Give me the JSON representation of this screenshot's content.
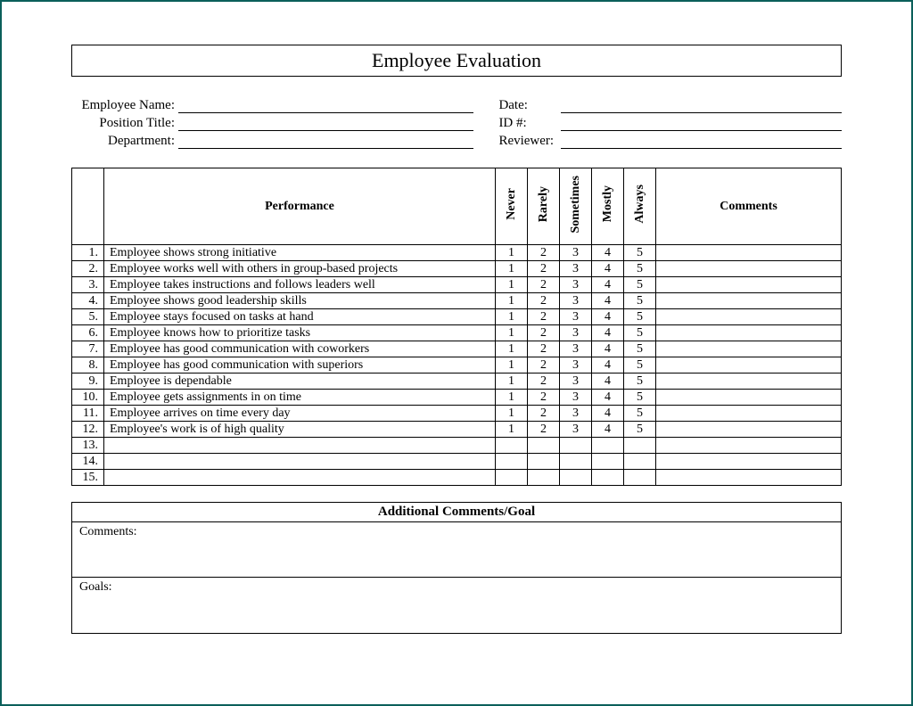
{
  "title": "Employee Evaluation",
  "header": {
    "left": [
      {
        "label": "Employee Name:"
      },
      {
        "label": "Position Title:"
      },
      {
        "label": "Department:"
      }
    ],
    "right": [
      {
        "label": "Date:"
      },
      {
        "label": "ID #:"
      },
      {
        "label": "Reviewer:"
      }
    ]
  },
  "table": {
    "col_performance": "Performance",
    "col_comments": "Comments",
    "rating_labels": [
      "Never",
      "Rarely",
      "Sometimes",
      "Mostly",
      "Always"
    ],
    "rating_values": [
      "1",
      "2",
      "3",
      "4",
      "5"
    ],
    "rows": [
      {
        "num": "1.",
        "text": "Employee shows strong initiative",
        "rated": true
      },
      {
        "num": "2.",
        "text": "Employee works well with others in group-based projects",
        "rated": true
      },
      {
        "num": "3.",
        "text": "Employee takes instructions and follows  leaders well",
        "rated": true
      },
      {
        "num": "4.",
        "text": "Employee shows good leadership skills",
        "rated": true
      },
      {
        "num": "5.",
        "text": "Employee stays focused on tasks at hand",
        "rated": true
      },
      {
        "num": "6.",
        "text": "Employee knows how to prioritize tasks",
        "rated": true
      },
      {
        "num": "7.",
        "text": "Employee has good communication with coworkers",
        "rated": true
      },
      {
        "num": "8.",
        "text": "Employee has good communication with superiors",
        "rated": true
      },
      {
        "num": "9.",
        "text": "Employee is dependable",
        "rated": true
      },
      {
        "num": "10.",
        "text": "Employee gets assignments in on time",
        "rated": true
      },
      {
        "num": "11.",
        "text": "Employee arrives on time every day",
        "rated": true
      },
      {
        "num": "12.",
        "text": "Employee's work is of high quality",
        "rated": true
      },
      {
        "num": "13.",
        "text": "",
        "rated": false
      },
      {
        "num": "14.",
        "text": "",
        "rated": false
      },
      {
        "num": "15.",
        "text": "",
        "rated": false
      }
    ]
  },
  "additional": {
    "title": "Additional Comments/Goal",
    "comments_label": "Comments:",
    "goals_label": "Goals:"
  },
  "colors": {
    "frame_border": "#0b5f5a",
    "line": "#000000",
    "background": "#ffffff"
  }
}
